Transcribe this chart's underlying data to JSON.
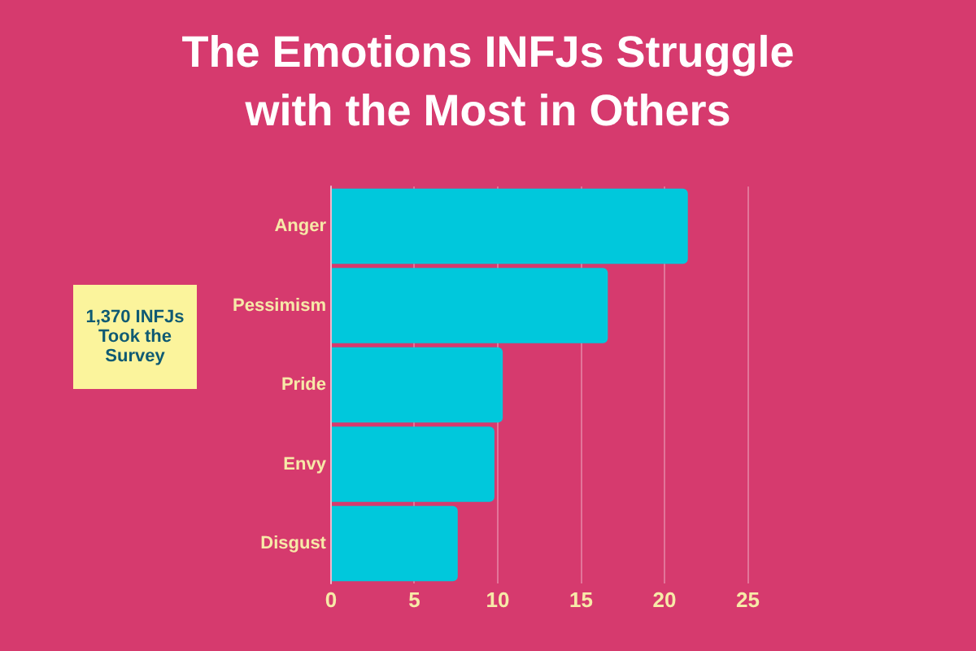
{
  "chart_data": {
    "type": "bar",
    "orientation": "horizontal",
    "title": "The Emotions INFJs Struggle with the Most in Others",
    "categories": [
      "Anger",
      "Pessimism",
      "Pride",
      "Envy",
      "Disgust"
    ],
    "values": [
      21.4,
      16.6,
      10.3,
      9.8,
      7.6
    ],
    "color": "#00c8dc",
    "xlim": [
      0,
      25
    ],
    "xticks": [
      0,
      5,
      10,
      15,
      20,
      25
    ],
    "grid": "x",
    "legend": false,
    "annotations": [
      "1,370 INFJs Took the Survey"
    ]
  }
}
